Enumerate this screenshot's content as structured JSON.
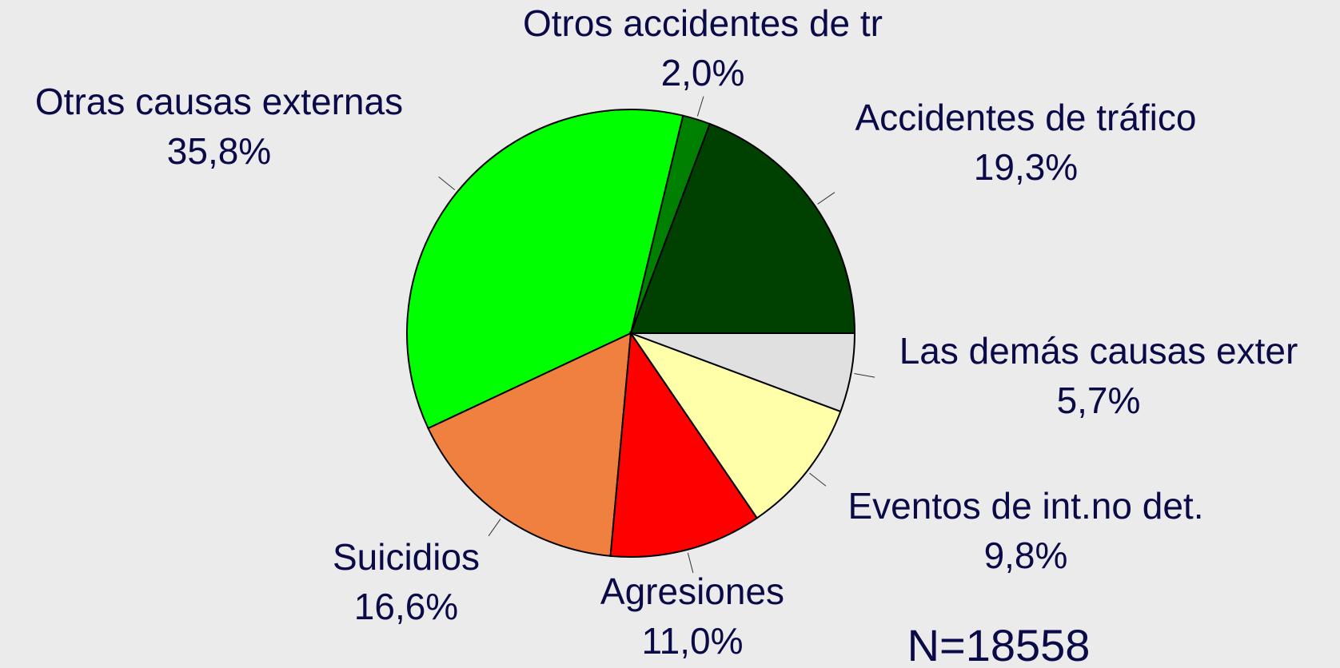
{
  "chart_data": {
    "type": "pie",
    "categories": [
      "Accidentes de tráfico",
      "Otros accidentes de tr",
      "Otras causas externas",
      "Suicidios",
      "Agresiones",
      "Eventos de int.no det.",
      "Las demás causas exter"
    ],
    "values": [
      19.3,
      2.0,
      35.8,
      16.6,
      11.0,
      9.8,
      5.7
    ],
    "value_labels": [
      "19,3%",
      "2,0%",
      "35,8%",
      "16,6%",
      "11,0%",
      "9,8%",
      "5,7%"
    ],
    "colors": [
      "#004000",
      "#008000",
      "#00ff00",
      "#f08040",
      "#ff0000",
      "#ffffaa",
      "#e0e0e0"
    ],
    "annotation": "N=18558"
  }
}
